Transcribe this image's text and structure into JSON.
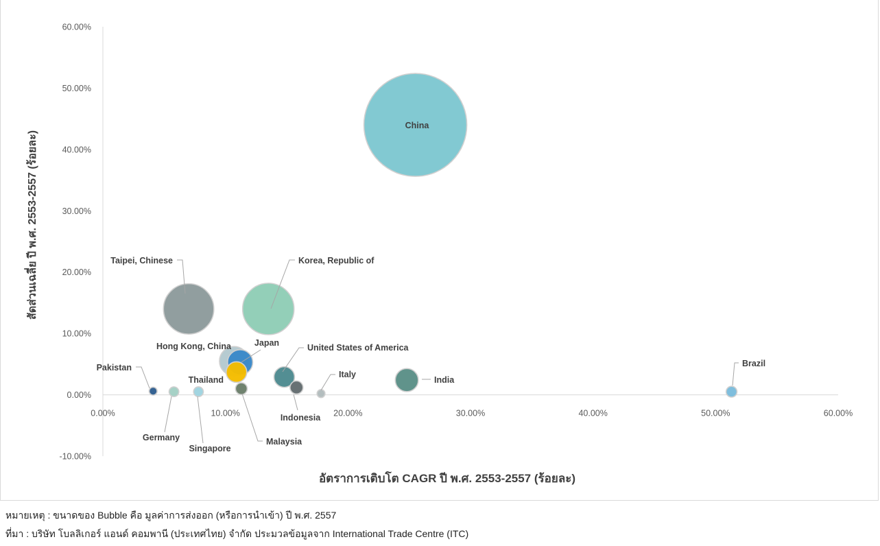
{
  "chart_data": {
    "type": "bubble",
    "xlabel": "อัตราการเติบโต CAGR ปี พ.ศ. 2553-2557 (ร้อยละ)",
    "ylabel": "สัดส่วนเฉลี่ย ปี พ.ศ. 2553-2557 (ร้อยละ)",
    "xlim": [
      0,
      60
    ],
    "ylim": [
      -10,
      60
    ],
    "x_ticks": [
      "0.00%",
      "10.00%",
      "20.00%",
      "30.00%",
      "40.00%",
      "50.00%",
      "60.00%"
    ],
    "y_ticks": [
      "-10.00%",
      "0.00%",
      "10.00%",
      "20.00%",
      "30.00%",
      "40.00%",
      "50.00%",
      "60.00%"
    ],
    "grid": false,
    "bubble_size_note": "ขนาดของ Bubble คือ มูลค่าการส่งออก (หรือการนำเข้า) ปี พ.ศ. 2557",
    "points": [
      {
        "name": "China",
        "x": 25.5,
        "y": 44.0,
        "size": 100,
        "color": "#7ec7d1"
      },
      {
        "name": "Taipei, Chinese",
        "x": 7.0,
        "y": 14.0,
        "size": 24,
        "color": "#8d9b9c"
      },
      {
        "name": "Korea, Republic of",
        "x": 13.5,
        "y": 14.0,
        "size": 25,
        "color": "#8fcdb6"
      },
      {
        "name": "Hong Kong, China",
        "x": 10.7,
        "y": 5.5,
        "size": 8,
        "color": "#b4c9d0"
      },
      {
        "name": "Japan",
        "x": 11.2,
        "y": 5.3,
        "size": 6,
        "color": "#3a88c8"
      },
      {
        "name": "Thailand",
        "x": 10.9,
        "y": 3.7,
        "size": 4,
        "color": "#f5bd00"
      },
      {
        "name": "United States of America",
        "x": 14.8,
        "y": 2.9,
        "size": 4,
        "color": "#4d8a8f"
      },
      {
        "name": "India",
        "x": 24.8,
        "y": 2.4,
        "size": 5,
        "color": "#5b8f87"
      },
      {
        "name": "Indonesia",
        "x": 15.8,
        "y": 1.2,
        "size": 1.6,
        "color": "#636c6f"
      },
      {
        "name": "Malaysia",
        "x": 11.3,
        "y": 1.0,
        "size": 1.3,
        "color": "#6b7f6a"
      },
      {
        "name": "Pakistan",
        "x": 4.1,
        "y": 0.6,
        "size": 0.6,
        "color": "#2f5e8f"
      },
      {
        "name": "Germany",
        "x": 5.8,
        "y": 0.5,
        "size": 0.9,
        "color": "#a3cfc4"
      },
      {
        "name": "Singapore",
        "x": 7.8,
        "y": 0.5,
        "size": 0.9,
        "color": "#9fd4e0"
      },
      {
        "name": "Italy",
        "x": 17.8,
        "y": 0.2,
        "size": 0.6,
        "color": "#b2bcbd"
      },
      {
        "name": "Brazil",
        "x": 51.3,
        "y": 0.5,
        "size": 1.1,
        "color": "#7bbcdc"
      }
    ]
  },
  "notes": {
    "remark": "หมายเหตุ : ขนาดของ Bubble คือ มูลค่าการส่งออก (หรือการนำเข้า) ปี พ.ศ. 2557",
    "source": "ที่มา : บริษัท โบลลิเกอร์ แอนด์ คอมพานี (ประเทศไทย) จำกัด ประมวลข้อมูลจาก International Trade Centre (ITC)"
  }
}
